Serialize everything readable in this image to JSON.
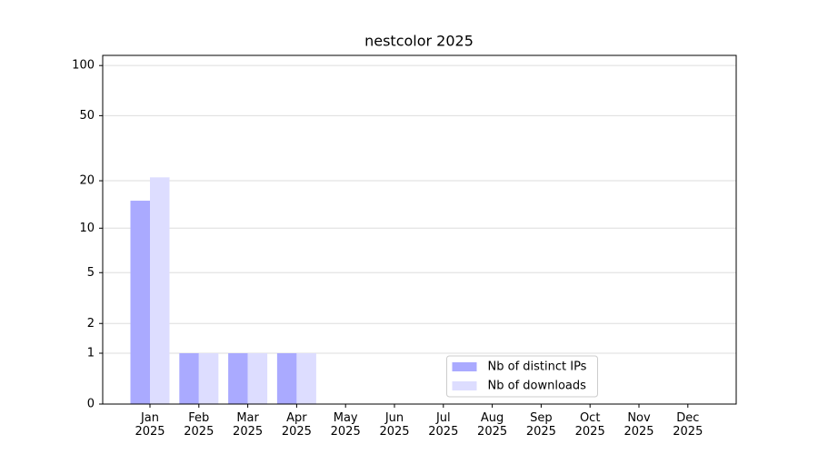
{
  "chart_data": {
    "type": "bar",
    "title": "nestcolor 2025",
    "categories": [
      "Jan\n2025",
      "Feb\n2025",
      "Mar\n2025",
      "Apr\n2025",
      "May\n2025",
      "Jun\n2025",
      "Jul\n2025",
      "Aug\n2025",
      "Sep\n2025",
      "Oct\n2025",
      "Nov\n2025",
      "Dec\n2025"
    ],
    "series": [
      {
        "name": "Nb of distinct IPs",
        "color": "#aaaaff",
        "values": [
          15,
          1,
          1,
          1,
          0,
          0,
          0,
          0,
          0,
          0,
          0,
          0
        ]
      },
      {
        "name": "Nb of downloads",
        "color": "#ddddff",
        "values": [
          21,
          1,
          1,
          1,
          0,
          0,
          0,
          0,
          0,
          0,
          0,
          0
        ]
      }
    ],
    "yscale": "log1p",
    "ylim": [
      0,
      115
    ],
    "yticks": [
      0,
      1,
      2,
      5,
      10,
      20,
      50,
      100
    ],
    "grid": true,
    "legend": "lower center"
  }
}
